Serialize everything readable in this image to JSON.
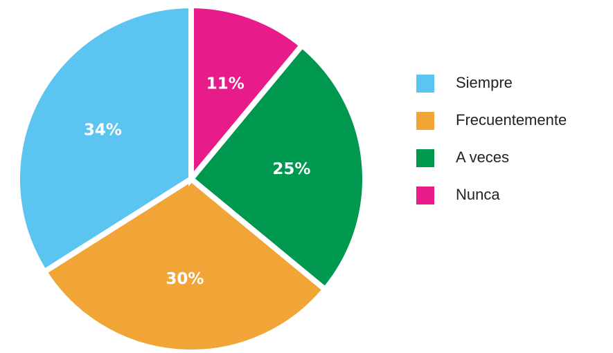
{
  "chart_data": {
    "type": "pie",
    "categories": [
      "Siempre",
      "Frecuentemente",
      "A veces",
      "Nunca"
    ],
    "values": [
      34,
      30,
      25,
      11
    ],
    "value_labels": [
      "34%",
      "30%",
      "25%",
      "11%"
    ],
    "colors": [
      "#5bc4f1",
      "#f0a536",
      "#00984f",
      "#e71b8a"
    ],
    "counterclock": true,
    "legend": "right"
  }
}
